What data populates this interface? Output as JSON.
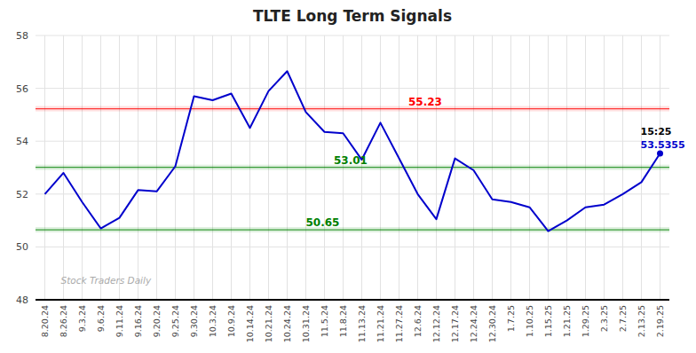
{
  "chart_data": {
    "type": "line",
    "title": "TLTE Long Term Signals",
    "categories": [
      "8.20.24",
      "8.26.24",
      "9.3.24",
      "9.6.24",
      "9.11.24",
      "9.16.24",
      "9.20.24",
      "9.25.24",
      "9.30.24",
      "10.3.24",
      "10.9.24",
      "10.14.24",
      "10.21.24",
      "10.24.24",
      "10.31.24",
      "11.5.24",
      "11.8.24",
      "11.13.24",
      "11.21.24",
      "11.27.24",
      "12.6.24",
      "12.12.24",
      "12.17.24",
      "12.24.24",
      "12.30.24",
      "1.7.25",
      "1.10.25",
      "1.15.25",
      "1.21.25",
      "1.29.25",
      "2.3.25",
      "2.7.25",
      "2.13.25",
      "2.19.25"
    ],
    "series": [
      {
        "color": "#0000cc",
        "values": [
          52.0,
          52.8,
          51.7,
          50.7,
          51.1,
          52.15,
          52.1,
          53.05,
          55.7,
          55.55,
          55.8,
          54.5,
          55.9,
          56.65,
          55.1,
          54.35,
          54.3,
          53.3,
          54.7,
          53.35,
          52.0,
          51.05,
          53.35,
          52.9,
          51.8,
          51.7,
          51.5,
          50.6,
          51.0,
          51.5,
          51.6,
          52.0,
          52.45,
          53.5355
        ]
      }
    ],
    "reference_lines": [
      {
        "value": 55.23,
        "label": "55.23",
        "color": "red"
      },
      {
        "value": 53.01,
        "label": "53.01",
        "color": "green"
      },
      {
        "value": 50.65,
        "label": "50.65",
        "color": "green"
      }
    ],
    "annotations": [
      {
        "text": "15:25",
        "color": "black"
      },
      {
        "text": "53.5355",
        "color": "#0000cc"
      }
    ],
    "watermark": "Stock Traders Daily",
    "ylim": [
      48,
      58
    ],
    "yticks": [
      48,
      50,
      52,
      54,
      56,
      58
    ],
    "grid": true
  }
}
